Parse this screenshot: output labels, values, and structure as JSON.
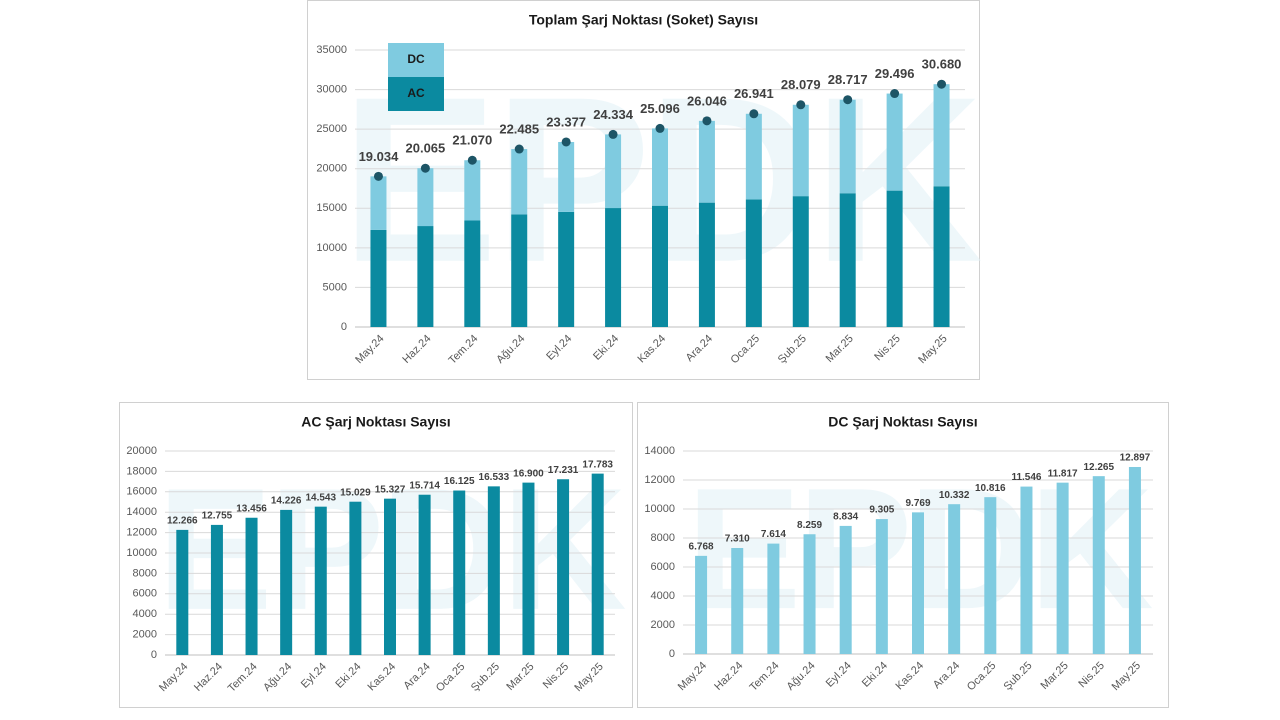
{
  "watermark": "EPDK",
  "chart_data": [
    {
      "type": "stacked_bar",
      "title": "Toplam Şarj Noktası (Soket) Sayısı",
      "categories": [
        "May.24",
        "Haz.24",
        "Tem.24",
        "Ağu.24",
        "Eyl.24",
        "Eki.24",
        "Kas.24",
        "Ara.24",
        "Oca.25",
        "Şub.25",
        "Mar.25",
        "Nis.25",
        "May.25"
      ],
      "series": [
        {
          "name": "AC",
          "color": "#0b8aa0",
          "values": [
            12266,
            12755,
            13456,
            14226,
            14543,
            15029,
            15327,
            15714,
            16125,
            16533,
            16900,
            17231,
            17783
          ]
        },
        {
          "name": "DC",
          "color": "#7fcbe0",
          "values": [
            6768,
            7310,
            7614,
            8259,
            8834,
            9305,
            9769,
            10332,
            10816,
            11546,
            11817,
            12265,
            12897
          ]
        }
      ],
      "totals": {
        "color": "#1d5566",
        "values": [
          19034,
          20065,
          21070,
          22485,
          23377,
          24334,
          25096,
          26046,
          26941,
          28079,
          28717,
          29496,
          30680
        ],
        "value_labels": [
          "19.034",
          "20.065",
          "21.070",
          "22.485",
          "23.377",
          "24.334",
          "25.096",
          "26.046",
          "26.941",
          "28.079",
          "28.717",
          "29.496",
          "30.680"
        ]
      },
      "ylim": [
        0,
        35000
      ],
      "yticks": [
        0,
        5000,
        10000,
        15000,
        20000,
        25000,
        30000,
        35000
      ],
      "grid": true,
      "legend": "top-left"
    },
    {
      "type": "bar",
      "title": "AC Şarj Noktası Sayısı",
      "color": "#0b8aa0",
      "categories": [
        "May.24",
        "Haz.24",
        "Tem.24",
        "Ağu.24",
        "Eyl.24",
        "Eki.24",
        "Kas.24",
        "Ara.24",
        "Oca.25",
        "Şub.25",
        "Mar.25",
        "Nis.25",
        "May.25"
      ],
      "values": [
        12266,
        12755,
        13456,
        14226,
        14543,
        15029,
        15327,
        15714,
        16125,
        16533,
        16900,
        17231,
        17783
      ],
      "value_labels": [
        "12.266",
        "12.755",
        "13.456",
        "14.226",
        "14.543",
        "15.029",
        "15.327",
        "15.714",
        "16.125",
        "16.533",
        "16.900",
        "17.231",
        "17.783"
      ],
      "ylim": [
        0,
        20000
      ],
      "yticks": [
        0,
        2000,
        4000,
        6000,
        8000,
        10000,
        12000,
        14000,
        16000,
        18000,
        20000
      ],
      "grid": true
    },
    {
      "type": "bar",
      "title": "DC Şarj Noktası Sayısı",
      "color": "#7fcbe0",
      "categories": [
        "May.24",
        "Haz.24",
        "Tem.24",
        "Ağu.24",
        "Eyl.24",
        "Eki.24",
        "Kas.24",
        "Ara.24",
        "Oca.25",
        "Şub.25",
        "Mar.25",
        "Nis.25",
        "May.25"
      ],
      "values": [
        6768,
        7310,
        7614,
        8259,
        8834,
        9305,
        9769,
        10332,
        10816,
        11546,
        11817,
        12265,
        12897
      ],
      "value_labels": [
        "6.768",
        "7.310",
        "7.614",
        "8.259",
        "8.834",
        "9.305",
        "9.769",
        "10.332",
        "10.816",
        "11.546",
        "11.817",
        "12.265",
        "12.897"
      ],
      "ylim": [
        0,
        14000
      ],
      "yticks": [
        0,
        2000,
        4000,
        6000,
        8000,
        10000,
        12000,
        14000
      ],
      "grid": true
    }
  ]
}
